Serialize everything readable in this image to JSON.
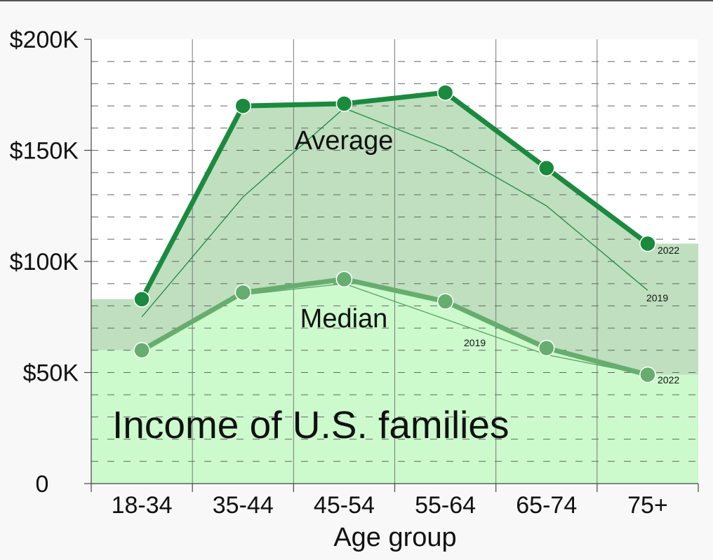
{
  "chart_data": {
    "type": "line",
    "title": "Income of U.S. families",
    "xlabel": "Age group",
    "ylabel": "",
    "categories": [
      "18-34",
      "35-44",
      "45-54",
      "55-64",
      "65-74",
      "75+"
    ],
    "y_ticks": [
      "0",
      "$50K",
      "$100K",
      "$150K",
      "$200K"
    ],
    "ylim": [
      0,
      200000
    ],
    "grid": true,
    "colors": {
      "average_2022": "#1a8a3e",
      "median_2022": "#66ad6f",
      "average_2019": "#1a8a3e",
      "median_2019": "#5aa066",
      "average_band": "#bfdfbf",
      "median_band": "#ccfacc"
    },
    "series": [
      {
        "name": "Average",
        "year": "2022",
        "values": [
          83000,
          170000,
          171000,
          176000,
          142000,
          108000
        ]
      },
      {
        "name": "Median",
        "year": "2022",
        "values": [
          60000,
          86000,
          92000,
          82000,
          61000,
          49000
        ]
      },
      {
        "name": "Average",
        "year": "2019",
        "values": [
          75000,
          129000,
          169000,
          151000,
          125000,
          87000
        ]
      },
      {
        "name": "Median",
        "year": "2019",
        "values": [
          59000,
          85000,
          90000,
          74000,
          58000,
          49000
        ]
      }
    ],
    "annotations": {
      "average_label": "Average",
      "median_label": "Median",
      "year_2022_avg": "2022",
      "year_2022_med": "2022",
      "year_2019_avg": "2019",
      "year_2019_med": "2019"
    }
  }
}
